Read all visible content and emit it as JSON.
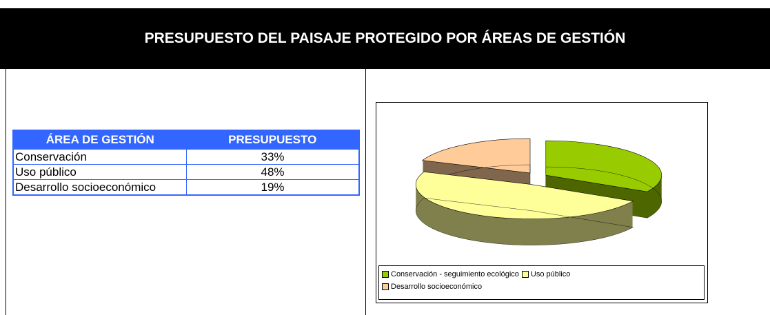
{
  "header": {
    "title": "PRESUPUESTO DEL PAISAJE PROTEGIDO POR ÁREAS DE GESTIÓN"
  },
  "table": {
    "columns": [
      "ÁREA DE GESTIÓN",
      "PRESUPUESTO"
    ],
    "rows": [
      [
        "Conservación",
        "33%"
      ],
      [
        "Uso público",
        "48%"
      ],
      [
        "Desarrollo socioeconómico",
        "19%"
      ]
    ]
  },
  "chart_data": {
    "type": "pie",
    "categories": [
      "Conservación - seguimiento ecológico",
      "Uso público",
      "Desarrollo socioeconómico"
    ],
    "values": [
      33,
      48,
      19
    ],
    "colors": [
      "#99cc00",
      "#ffff99",
      "#ffcc99"
    ],
    "legend": "bottom"
  }
}
